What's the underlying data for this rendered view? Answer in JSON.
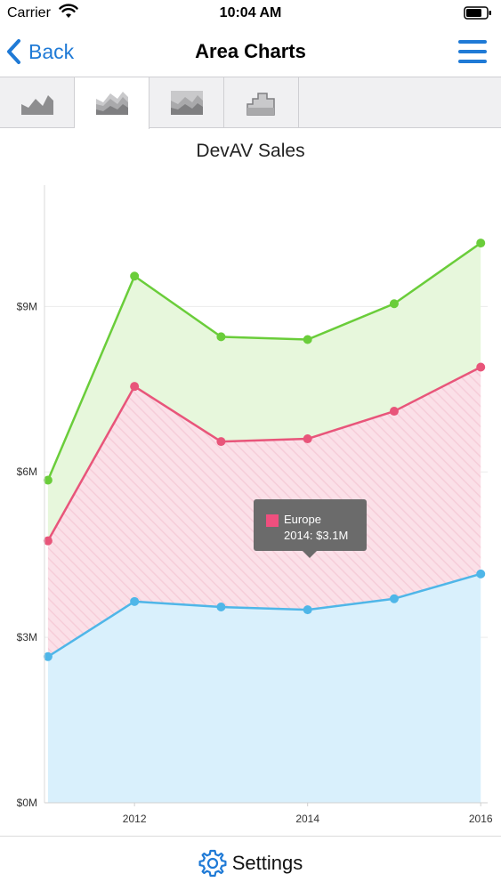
{
  "status_bar": {
    "carrier": "Carrier",
    "time": "10:04 AM",
    "wifi_icon": "wifi-icon",
    "battery_icon": "battery-icon"
  },
  "nav": {
    "back_label": "Back",
    "title": "Area Charts",
    "back_icon": "chevron-left-icon",
    "menu_icon": "hamburger-menu-icon",
    "accent_color": "#1f7ad6"
  },
  "tabs": [
    {
      "icon": "area-chart-icon",
      "active": false
    },
    {
      "icon": "stacked-area-chart-icon",
      "active": true
    },
    {
      "icon": "full-stacked-area-chart-icon",
      "active": false
    },
    {
      "icon": "step-area-chart-icon",
      "active": false
    }
  ],
  "chart_data": {
    "type": "area",
    "stacked": true,
    "title": "DevAV Sales",
    "x": [
      2011,
      2012,
      2013,
      2014,
      2015,
      2016
    ],
    "x_tick_labels": [
      "2012",
      "2014",
      "2016"
    ],
    "x_tick_values": [
      2012,
      2014,
      2016
    ],
    "y_tick_labels": [
      "$0M",
      "$3M",
      "$6M",
      "$9M"
    ],
    "y_tick_values": [
      0,
      3,
      6,
      9
    ],
    "ylim": [
      0,
      11.2
    ],
    "xlim": [
      2010.96,
      2016.08
    ],
    "grid": true,
    "series": [
      {
        "name": "",
        "color": "#4fb6e8",
        "fill": "#d9f0fc",
        "values": [
          2.65,
          3.65,
          3.55,
          3.5,
          3.7,
          4.15
        ]
      },
      {
        "name": "Europe",
        "color": "#e8557a",
        "fill": "#fbe0e8",
        "values": [
          2.1,
          3.9,
          3.0,
          3.1,
          3.4,
          3.75
        ]
      },
      {
        "name": "",
        "color": "#6acd3a",
        "fill": "#e7f7dc",
        "values": [
          1.1,
          2.0,
          1.9,
          1.8,
          1.95,
          2.25
        ]
      }
    ],
    "tooltip": {
      "series": "Europe",
      "text": "2014: $3.1M",
      "color": "#ef4f7e"
    }
  },
  "bottom": {
    "settings_label": "Settings",
    "settings_icon": "gear-icon"
  }
}
